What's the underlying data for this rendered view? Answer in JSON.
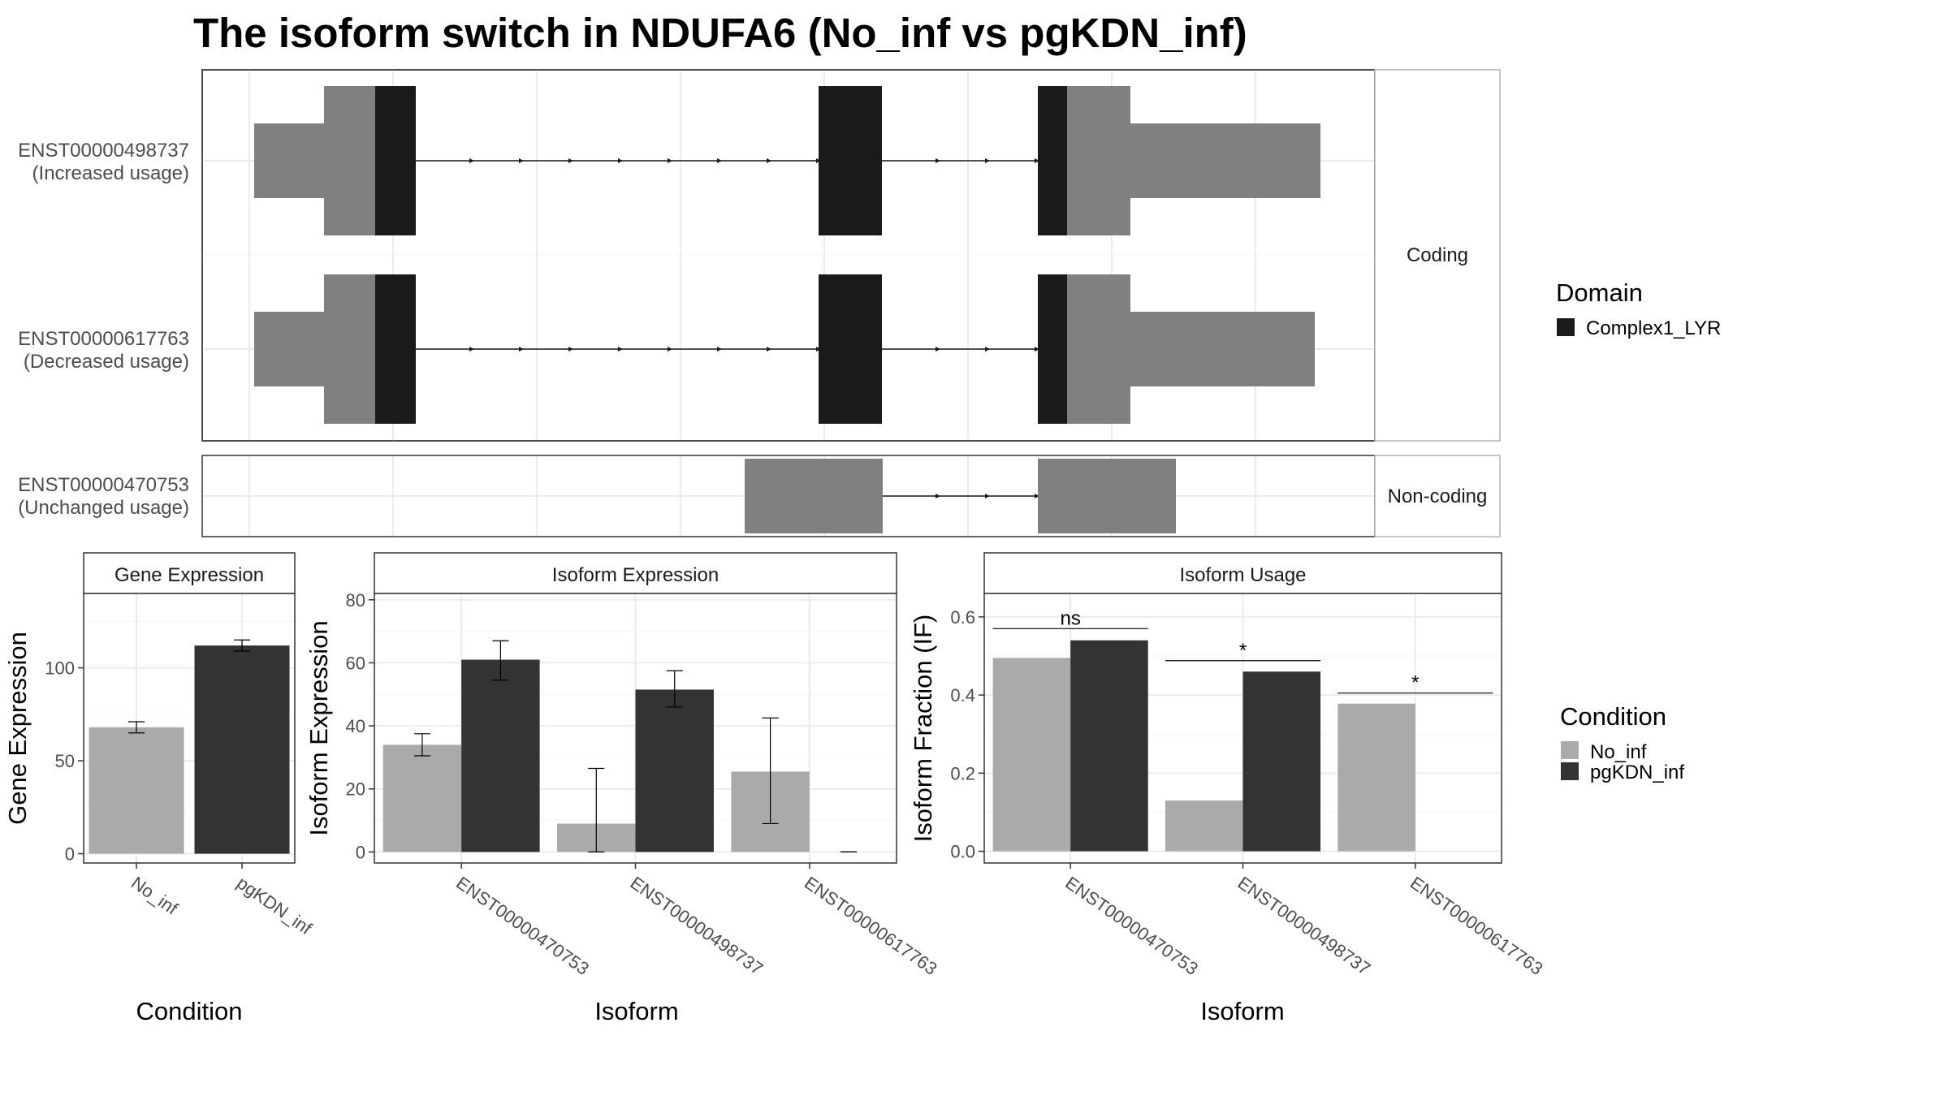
{
  "colors": {
    "no_inf": "#aaaaaa",
    "pgkdn_inf": "#333333",
    "domain": "#1a1a1a",
    "utr": "#808080"
  },
  "figure": {
    "title": "The isoform switch in NDUFA6 (No_inf vs pgKDN_inf)"
  },
  "structure": {
    "facets": [
      "Coding",
      "Non-coding"
    ],
    "isoforms": [
      {
        "id": "ENST00000498737",
        "usage": "(Increased usage)",
        "facet": "Coding"
      },
      {
        "id": "ENST00000617763",
        "usage": "(Decreased usage)",
        "facet": "Coding"
      },
      {
        "id": "ENST00000470753",
        "usage": "(Unchanged usage)",
        "facet": "Non-coding"
      }
    ],
    "legend_title": "Domain",
    "legend_item": "Complex1_LYR"
  },
  "chart_data": [
    {
      "type": "bar",
      "title": "Gene Expression",
      "xlabel": "Condition",
      "ylabel": "Gene Expression",
      "categories": [
        "No_inf",
        "pgKDN_inf"
      ],
      "values": [
        68,
        112
      ],
      "error_low": [
        65,
        109
      ],
      "error_high": [
        71,
        115
      ],
      "ylim": [
        -5,
        140
      ],
      "yticks": [
        0,
        50,
        100
      ]
    },
    {
      "type": "bar",
      "title": "Isoform Expression",
      "xlabel": "Isoform",
      "ylabel": "Isoform Expression",
      "categories": [
        "ENST00000470753",
        "ENST00000498737",
        "ENST00000617763"
      ],
      "series": [
        {
          "name": "No_inf",
          "values": [
            34,
            9,
            25.5
          ],
          "error_low": [
            30.5,
            0,
            9
          ],
          "error_high": [
            37.5,
            26.5,
            42.5
          ]
        },
        {
          "name": "pgKDN_inf",
          "values": [
            61,
            51.5,
            0
          ],
          "error_low": [
            54.5,
            46,
            0
          ],
          "error_high": [
            67,
            57.5,
            0
          ]
        }
      ],
      "ylim": [
        -3.5,
        82
      ],
      "yticks": [
        0,
        20,
        40,
        60,
        80
      ]
    },
    {
      "type": "bar",
      "title": "Isoform Usage",
      "xlabel": "Isoform",
      "ylabel": "Isoform Fraction (IF)",
      "categories": [
        "ENST00000470753",
        "ENST00000498737",
        "ENST00000617763"
      ],
      "series": [
        {
          "name": "No_inf",
          "values": [
            0.495,
            0.13,
            0.378
          ]
        },
        {
          "name": "pgKDN_inf",
          "values": [
            0.54,
            0.46,
            0
          ]
        }
      ],
      "significance": [
        "ns",
        "*",
        "*"
      ],
      "significance_y": [
        0.57,
        0.488,
        0.405
      ],
      "ylim": [
        -0.03,
        0.66
      ],
      "yticks": [
        0.0,
        0.2,
        0.4,
        0.6
      ],
      "ytick_labels": [
        "0.0",
        "0.2",
        "0.4",
        "0.6"
      ]
    }
  ],
  "condition_legend": {
    "title": "Condition",
    "items": [
      "No_inf",
      "pgKDN_inf"
    ]
  }
}
